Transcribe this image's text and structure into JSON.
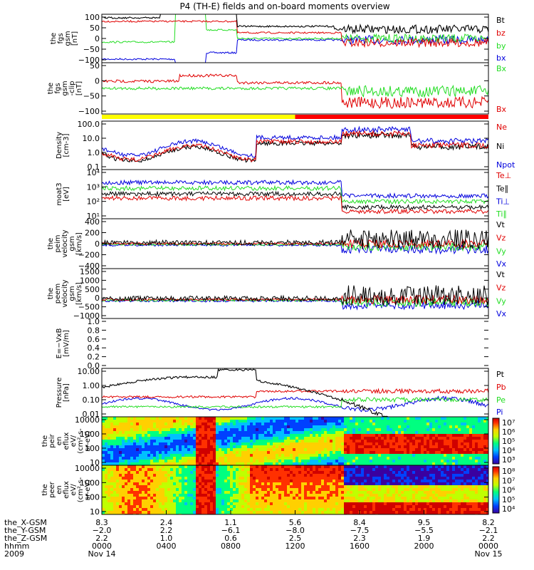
{
  "title": "P4 (TH-E) fields and on-board moments overview",
  "colors": {
    "black": "#000000",
    "red": "#e00000",
    "green": "#22dd22",
    "blue": "#0000dd",
    "yellow": "#ffff00",
    "barred": "#ff0000"
  },
  "chart_data": [
    {
      "type": "line",
      "panel": "fgs",
      "ylabel": [
        "the",
        "fgs",
        "gsm",
        "[nT]"
      ],
      "yticks": [
        "100",
        "50",
        "0",
        "−50",
        "−100"
      ],
      "ylim": [
        -100,
        100
      ],
      "series": [
        {
          "name": "Bt",
          "color": "black"
        },
        {
          "name": "bz",
          "color": "red"
        },
        {
          "name": "by",
          "color": "green"
        },
        {
          "name": "bx",
          "color": "blue"
        }
      ]
    },
    {
      "type": "line",
      "panel": "fgs_clip",
      "ylabel": [
        "the",
        "fgs",
        "gsm",
        "-clip",
        "[nT]"
      ],
      "yticks": [
        "50",
        "0",
        "−50",
        "−100"
      ],
      "ylim": [
        -125,
        75
      ],
      "series": [
        {
          "name": "Bx",
          "color": "green"
        },
        {
          "name": "Bx",
          "color": "red"
        }
      ]
    },
    {
      "type": "line",
      "panel": "density",
      "ylabel": [
        "Density",
        "[cm-3]"
      ],
      "yticks": [
        "100.0",
        "10.0",
        "1.0",
        "0.1"
      ],
      "log": true,
      "series": [
        {
          "name": "Ne",
          "color": "red"
        },
        {
          "name": "Ni",
          "color": "black"
        },
        {
          "name": "Npot",
          "color": "blue"
        }
      ]
    },
    {
      "type": "line",
      "panel": "temperature",
      "ylabel": [
        "moat3",
        "[eV]"
      ],
      "yticks": [
        "10⁴",
        "10³",
        "10²",
        "10¹"
      ],
      "log": true,
      "series": [
        {
          "name": "Te⊥",
          "color": "red"
        },
        {
          "name": "Te∥",
          "color": "black"
        },
        {
          "name": "Ti⊥",
          "color": "blue"
        },
        {
          "name": "Ti∥",
          "color": "green"
        }
      ]
    },
    {
      "type": "line",
      "panel": "peim_velocity",
      "ylabel": [
        "the",
        "peim",
        "velocity",
        "gsm",
        "[km/s]"
      ],
      "yticks": [
        "400",
        "200",
        "0",
        "−200",
        "−400"
      ],
      "ylim": [
        -400,
        400
      ],
      "series": [
        {
          "name": "Vt",
          "color": "black"
        },
        {
          "name": "Vz",
          "color": "red"
        },
        {
          "name": "Vy",
          "color": "green"
        },
        {
          "name": "Vx",
          "color": "blue"
        }
      ]
    },
    {
      "type": "line",
      "panel": "peem_velocity",
      "ylabel": [
        "the",
        "peem",
        "velocity",
        "gsm",
        "[km/s]"
      ],
      "yticks": [
        "1500",
        "1000",
        "500",
        "0",
        "−500",
        "−1000"
      ],
      "ylim": [
        -1100,
        1500
      ],
      "series": [
        {
          "name": "Vt",
          "color": "black"
        },
        {
          "name": "Vz",
          "color": "red"
        },
        {
          "name": "Vy",
          "color": "green"
        },
        {
          "name": "Vx",
          "color": "blue"
        }
      ]
    },
    {
      "type": "line",
      "panel": "efield",
      "ylabel": [
        "E=−VxB",
        "[mV/m]"
      ],
      "yticks": [
        "1.0",
        "0.8",
        "0.6",
        "0.4",
        "0.2",
        "0.0"
      ],
      "ylim": [
        0,
        1
      ],
      "series": [
        {
          "name": "Ez",
          "color": "red"
        },
        {
          "name": "Ey",
          "color": "green"
        },
        {
          "name": "Ex",
          "color": "blue"
        }
      ]
    },
    {
      "type": "line",
      "panel": "pressure",
      "ylabel": [
        "Pressure",
        "[nPa]"
      ],
      "yticks": [
        "10.00",
        "1.00",
        "0.10",
        "0.01"
      ],
      "log": true,
      "series": [
        {
          "name": "Pt",
          "color": "black"
        },
        {
          "name": "Pb",
          "color": "red"
        },
        {
          "name": "Pe",
          "color": "green"
        },
        {
          "name": "Pi",
          "color": "blue"
        }
      ]
    },
    {
      "type": "heatmap",
      "panel": "peir_spec",
      "ylabel": [
        "the",
        "peir",
        "en",
        "eflux",
        "eV/",
        "(cm²-s-",
        "sr-eV)"
      ],
      "yticks": [
        "10000",
        "1000",
        "100",
        "10"
      ],
      "colorbar_ticks": [
        "10⁷",
        "10⁶",
        "10⁵",
        "10⁴",
        "10³"
      ]
    },
    {
      "type": "heatmap",
      "panel": "peer_spec",
      "ylabel": [
        "the",
        "peer",
        "en",
        "eflux",
        "eV/",
        "(cm²-s-",
        "sr-eV)"
      ],
      "yticks": [
        "10000",
        "1000",
        "100",
        "10"
      ],
      "colorbar_ticks": [
        "10⁸",
        "10⁷",
        "10⁶",
        "10⁵",
        "10⁴"
      ]
    }
  ],
  "footer": {
    "rows": [
      {
        "label": "the_X-GSM",
        "values": [
          "8.3",
          "2.4",
          "1.1",
          "5.6",
          "8.4",
          "9.5",
          "8.2"
        ]
      },
      {
        "label": "the_Y-GSM",
        "values": [
          "−2.0",
          "2.2",
          "−6.1",
          "−8.0",
          "−7.5",
          "−5.5",
          "−2.1"
        ]
      },
      {
        "label": "the_Z-GSM",
        "values": [
          "2.2",
          "1.0",
          "0.6",
          "2.5",
          "2.3",
          "1.9",
          "2.2"
        ]
      },
      {
        "label": "hhmm",
        "values": [
          "0000",
          "0400",
          "0800",
          "1200",
          "1600",
          "2000",
          "0000"
        ]
      },
      {
        "label": "2009",
        "values": [
          "Nov 14",
          "",
          "",
          "",
          "",
          "",
          "Nov 15"
        ]
      }
    ]
  }
}
